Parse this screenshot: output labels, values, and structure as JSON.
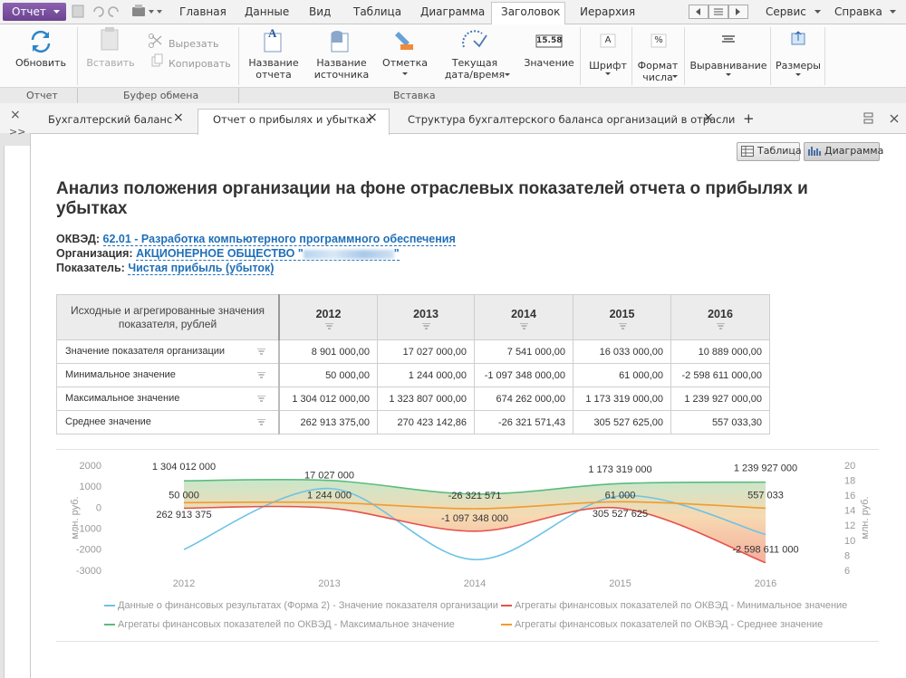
{
  "toolbar": {
    "app_menu": "Отчет",
    "tabs": [
      "Главная",
      "Данные",
      "Вид",
      "Таблица",
      "Диаграмма",
      "Заголовок",
      "Иерархия"
    ],
    "menus": [
      "Сервис",
      "Справка"
    ]
  },
  "ribbon": {
    "groups": [
      {
        "label": "Отчет",
        "buttons": [
          "Обновить"
        ]
      },
      {
        "label": "Буфер обмена",
        "buttons": [
          "Вставить",
          "Вырезать",
          "Копировать"
        ]
      },
      {
        "label": "Вставка",
        "buttons": [
          "Название отчета",
          "Название источника",
          "Отметка",
          "Текущая дата/время",
          "Значение",
          "Шрифт",
          "Формат числа",
          "Выравнивание",
          "Размеры"
        ]
      }
    ],
    "icon_texts": [
      "15.58",
      "A",
      "%"
    ]
  },
  "doc_tabs": [
    "Бухгалтерский баланс",
    "Отчет о прибылях и убытках",
    "Структура бухгалтерского баланса организаций в отрасли"
  ],
  "view_buttons": [
    "Таблица",
    "Диаграмма"
  ],
  "report": {
    "title": "Анализ положения организации на фоне отраслевых показателей отчета о прибылях и убытках",
    "okved_label": "ОКВЭД:",
    "okved": "62.01 - Разработка компьютерного программного обеспечения",
    "organization_label": "Организация:",
    "organization": {
      "prefix": "АКЦИОНЕРНОЕ ОБЩЕСТВО \"",
      "suffix": "\""
    },
    "indicator_label": "Показатель:",
    "indicator": "Чистая прибыль (убыток)"
  },
  "table": {
    "header": "Исходные и агрегированные значения показателя, рублей",
    "columns": [
      "2012",
      "2013",
      "2014",
      "2015",
      "2016"
    ],
    "rows": [
      {
        "label": "Значение показателя организации",
        "cells": [
          "8 901 000,00",
          "17 027 000,00",
          "7 541 000,00",
          "16 033 000,00",
          "10 889 000,00"
        ]
      },
      {
        "label": "Минимальное значение",
        "cells": [
          "50 000,00",
          "1 244 000,00",
          "-1 097 348 000,00",
          "61 000,00",
          "-2 598 611 000,00"
        ]
      },
      {
        "label": "Максимальное значение",
        "cells": [
          "1 304 012 000,00",
          "1 323 807 000,00",
          "674 262 000,00",
          "1 173 319 000,00",
          "1 239 927 000,00"
        ]
      },
      {
        "label": "Среднее значение",
        "cells": [
          "262 913 375,00",
          "270 423 142,86",
          "-26 321 571,43",
          "305 527 625,00",
          "557 033,30"
        ]
      }
    ]
  },
  "chart_data": {
    "type": "line",
    "categories": [
      "2012",
      "2013",
      "2014",
      "2015",
      "2016"
    ],
    "ylabel": "млн. руб.",
    "y2label": "млн. руб.",
    "ylim": [
      -3000,
      2000
    ],
    "yticks": [
      -3000,
      -2000,
      -1000,
      0,
      1000,
      2000
    ],
    "y2lim": [
      6,
      20
    ],
    "y2ticks": [
      6,
      8,
      10,
      12,
      14,
      16,
      18,
      20
    ],
    "band_fill": true,
    "series": [
      {
        "name": "Данные о финансовых результатах (Форма 2) - Значение показателя организации",
        "color": "#6cc3e6",
        "axis": "y2",
        "values": [
          8.901,
          17.027,
          7.541,
          16.033,
          10.889
        ],
        "value_labels": [
          null,
          "17 027 000",
          null,
          null,
          null
        ]
      },
      {
        "name": "Агрегаты финансовых показателей по ОКВЭД - Минимальное значение",
        "color": "#e5514b",
        "values": [
          0.05,
          1.244,
          -1097.348,
          0.061,
          -2598.611
        ],
        "value_labels": [
          "50 000",
          "1 244 000",
          "-1 097 348 000",
          "61 000",
          "-2 598 611 000"
        ]
      },
      {
        "name": "Агрегаты финансовых показателей по ОКВЭД - Максимальное значение",
        "color": "#5dbb7c",
        "values": [
          1304.012,
          1323.807,
          674.262,
          1173.319,
          1239.927
        ],
        "value_labels": [
          "1 304 012 000",
          null,
          null,
          "1 173 319 000",
          "1 239 927 000"
        ]
      },
      {
        "name": "Агрегаты финансовых показателей по ОКВЭД - Среднее значение",
        "color": "#f29a2e",
        "values": [
          262.913375,
          270.42314286,
          -26.32157143,
          305.527625,
          0.5570333
        ],
        "value_labels": [
          "262 913 375",
          null,
          "-26 321 571",
          "305 527 625",
          "557 033"
        ]
      }
    ]
  }
}
